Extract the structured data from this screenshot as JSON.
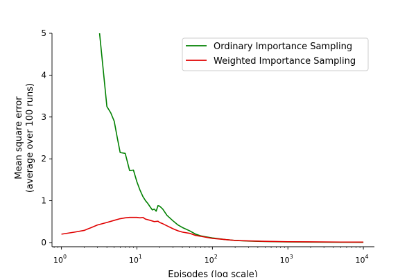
{
  "chart_data": {
    "type": "line",
    "xscale": "log",
    "xlabel": "Episodes (log scale)",
    "ylabel_line1": "Mean square error",
    "ylabel_line2": "(average over 100 runs)",
    "xlim": [
      0.75,
      14000
    ],
    "ylim": [
      -0.1,
      5
    ],
    "xticks": [
      {
        "value": 1,
        "label_base": "10",
        "label_exp": "0"
      },
      {
        "value": 10,
        "label_base": "10",
        "label_exp": "1"
      },
      {
        "value": 100,
        "label_base": "10",
        "label_exp": "2"
      },
      {
        "value": 1000,
        "label_base": "10",
        "label_exp": "3"
      },
      {
        "value": 10000,
        "label_base": "10",
        "label_exp": "4"
      }
    ],
    "yticks": [
      {
        "value": 0,
        "label": "0"
      },
      {
        "value": 1,
        "label": "1"
      },
      {
        "value": 2,
        "label": "2"
      },
      {
        "value": 3,
        "label": "3"
      },
      {
        "value": 4,
        "label": "4"
      },
      {
        "value": 5,
        "label": "5"
      }
    ],
    "legend_position": "top-right",
    "grid": false,
    "series": [
      {
        "name": "Ordinary Importance Sampling",
        "color": "#008000",
        "points": [
          [
            3.2,
            5.0
          ],
          [
            3.5,
            4.3
          ],
          [
            4.0,
            3.25
          ],
          [
            4.5,
            3.1
          ],
          [
            5.0,
            2.9
          ],
          [
            5.5,
            2.5
          ],
          [
            6.0,
            2.15
          ],
          [
            7.0,
            2.13
          ],
          [
            8.0,
            1.72
          ],
          [
            9.0,
            1.73
          ],
          [
            10,
            1.45
          ],
          [
            11,
            1.25
          ],
          [
            12,
            1.1
          ],
          [
            13,
            1.0
          ],
          [
            14,
            0.93
          ],
          [
            15,
            0.85
          ],
          [
            16,
            0.78
          ],
          [
            17,
            0.8
          ],
          [
            18,
            0.75
          ],
          [
            19,
            0.88
          ],
          [
            20,
            0.87
          ],
          [
            22,
            0.8
          ],
          [
            25,
            0.65
          ],
          [
            30,
            0.52
          ],
          [
            35,
            0.42
          ],
          [
            40,
            0.36
          ],
          [
            50,
            0.28
          ],
          [
            60,
            0.2
          ],
          [
            70,
            0.16
          ],
          [
            80,
            0.14
          ],
          [
            100,
            0.11
          ],
          [
            150,
            0.07
          ],
          [
            200,
            0.05
          ],
          [
            300,
            0.035
          ],
          [
            500,
            0.025
          ],
          [
            1000,
            0.015
          ],
          [
            2000,
            0.01
          ],
          [
            5000,
            0.007
          ],
          [
            10000,
            0.005
          ]
        ]
      },
      {
        "name": "Weighted Importance Sampling",
        "color": "#e00000",
        "points": [
          [
            1.0,
            0.2
          ],
          [
            1.5,
            0.25
          ],
          [
            2.0,
            0.29
          ],
          [
            2.5,
            0.36
          ],
          [
            3.0,
            0.42
          ],
          [
            4.0,
            0.48
          ],
          [
            5.0,
            0.53
          ],
          [
            6.0,
            0.57
          ],
          [
            7.0,
            0.59
          ],
          [
            8.0,
            0.6
          ],
          [
            9.0,
            0.6
          ],
          [
            10,
            0.6
          ],
          [
            11,
            0.59
          ],
          [
            12,
            0.6
          ],
          [
            13,
            0.56
          ],
          [
            15,
            0.53
          ],
          [
            17,
            0.5
          ],
          [
            19,
            0.51
          ],
          [
            20,
            0.48
          ],
          [
            22,
            0.45
          ],
          [
            25,
            0.4
          ],
          [
            30,
            0.33
          ],
          [
            35,
            0.28
          ],
          [
            40,
            0.25
          ],
          [
            50,
            0.22
          ],
          [
            60,
            0.17
          ],
          [
            70,
            0.15
          ],
          [
            80,
            0.13
          ],
          [
            100,
            0.1
          ],
          [
            150,
            0.07
          ],
          [
            200,
            0.05
          ],
          [
            300,
            0.04
          ],
          [
            500,
            0.03
          ],
          [
            1000,
            0.02
          ],
          [
            2000,
            0.017
          ],
          [
            5000,
            0.012
          ],
          [
            10000,
            0.01
          ]
        ]
      }
    ]
  }
}
